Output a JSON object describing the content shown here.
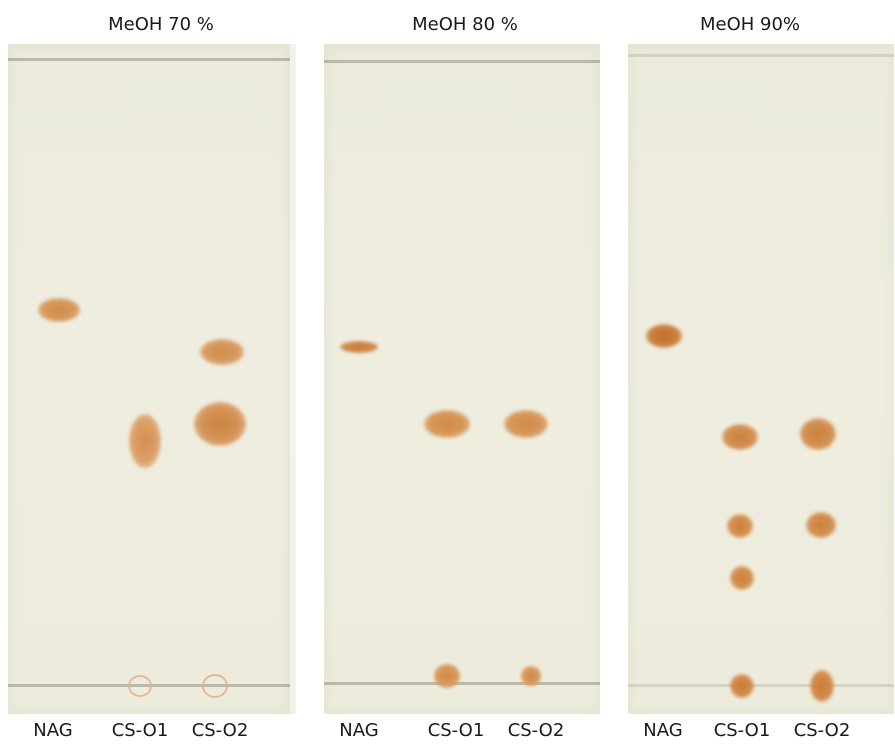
{
  "panels": [
    {
      "title": "MeOH 70 %",
      "lanes": [
        "NAG",
        "CS-O1",
        "CS-O2"
      ]
    },
    {
      "title": "MeOH 80 %",
      "lanes": [
        "NAG",
        "CS-O1",
        "CS-O2"
      ]
    },
    {
      "title": "MeOH 90%",
      "lanes": [
        "NAG",
        "CS-O1",
        "CS-O2"
      ]
    }
  ],
  "colors": {
    "plate": "#edecdc",
    "spot": "#cf8a45",
    "line": "#a9a89a"
  }
}
